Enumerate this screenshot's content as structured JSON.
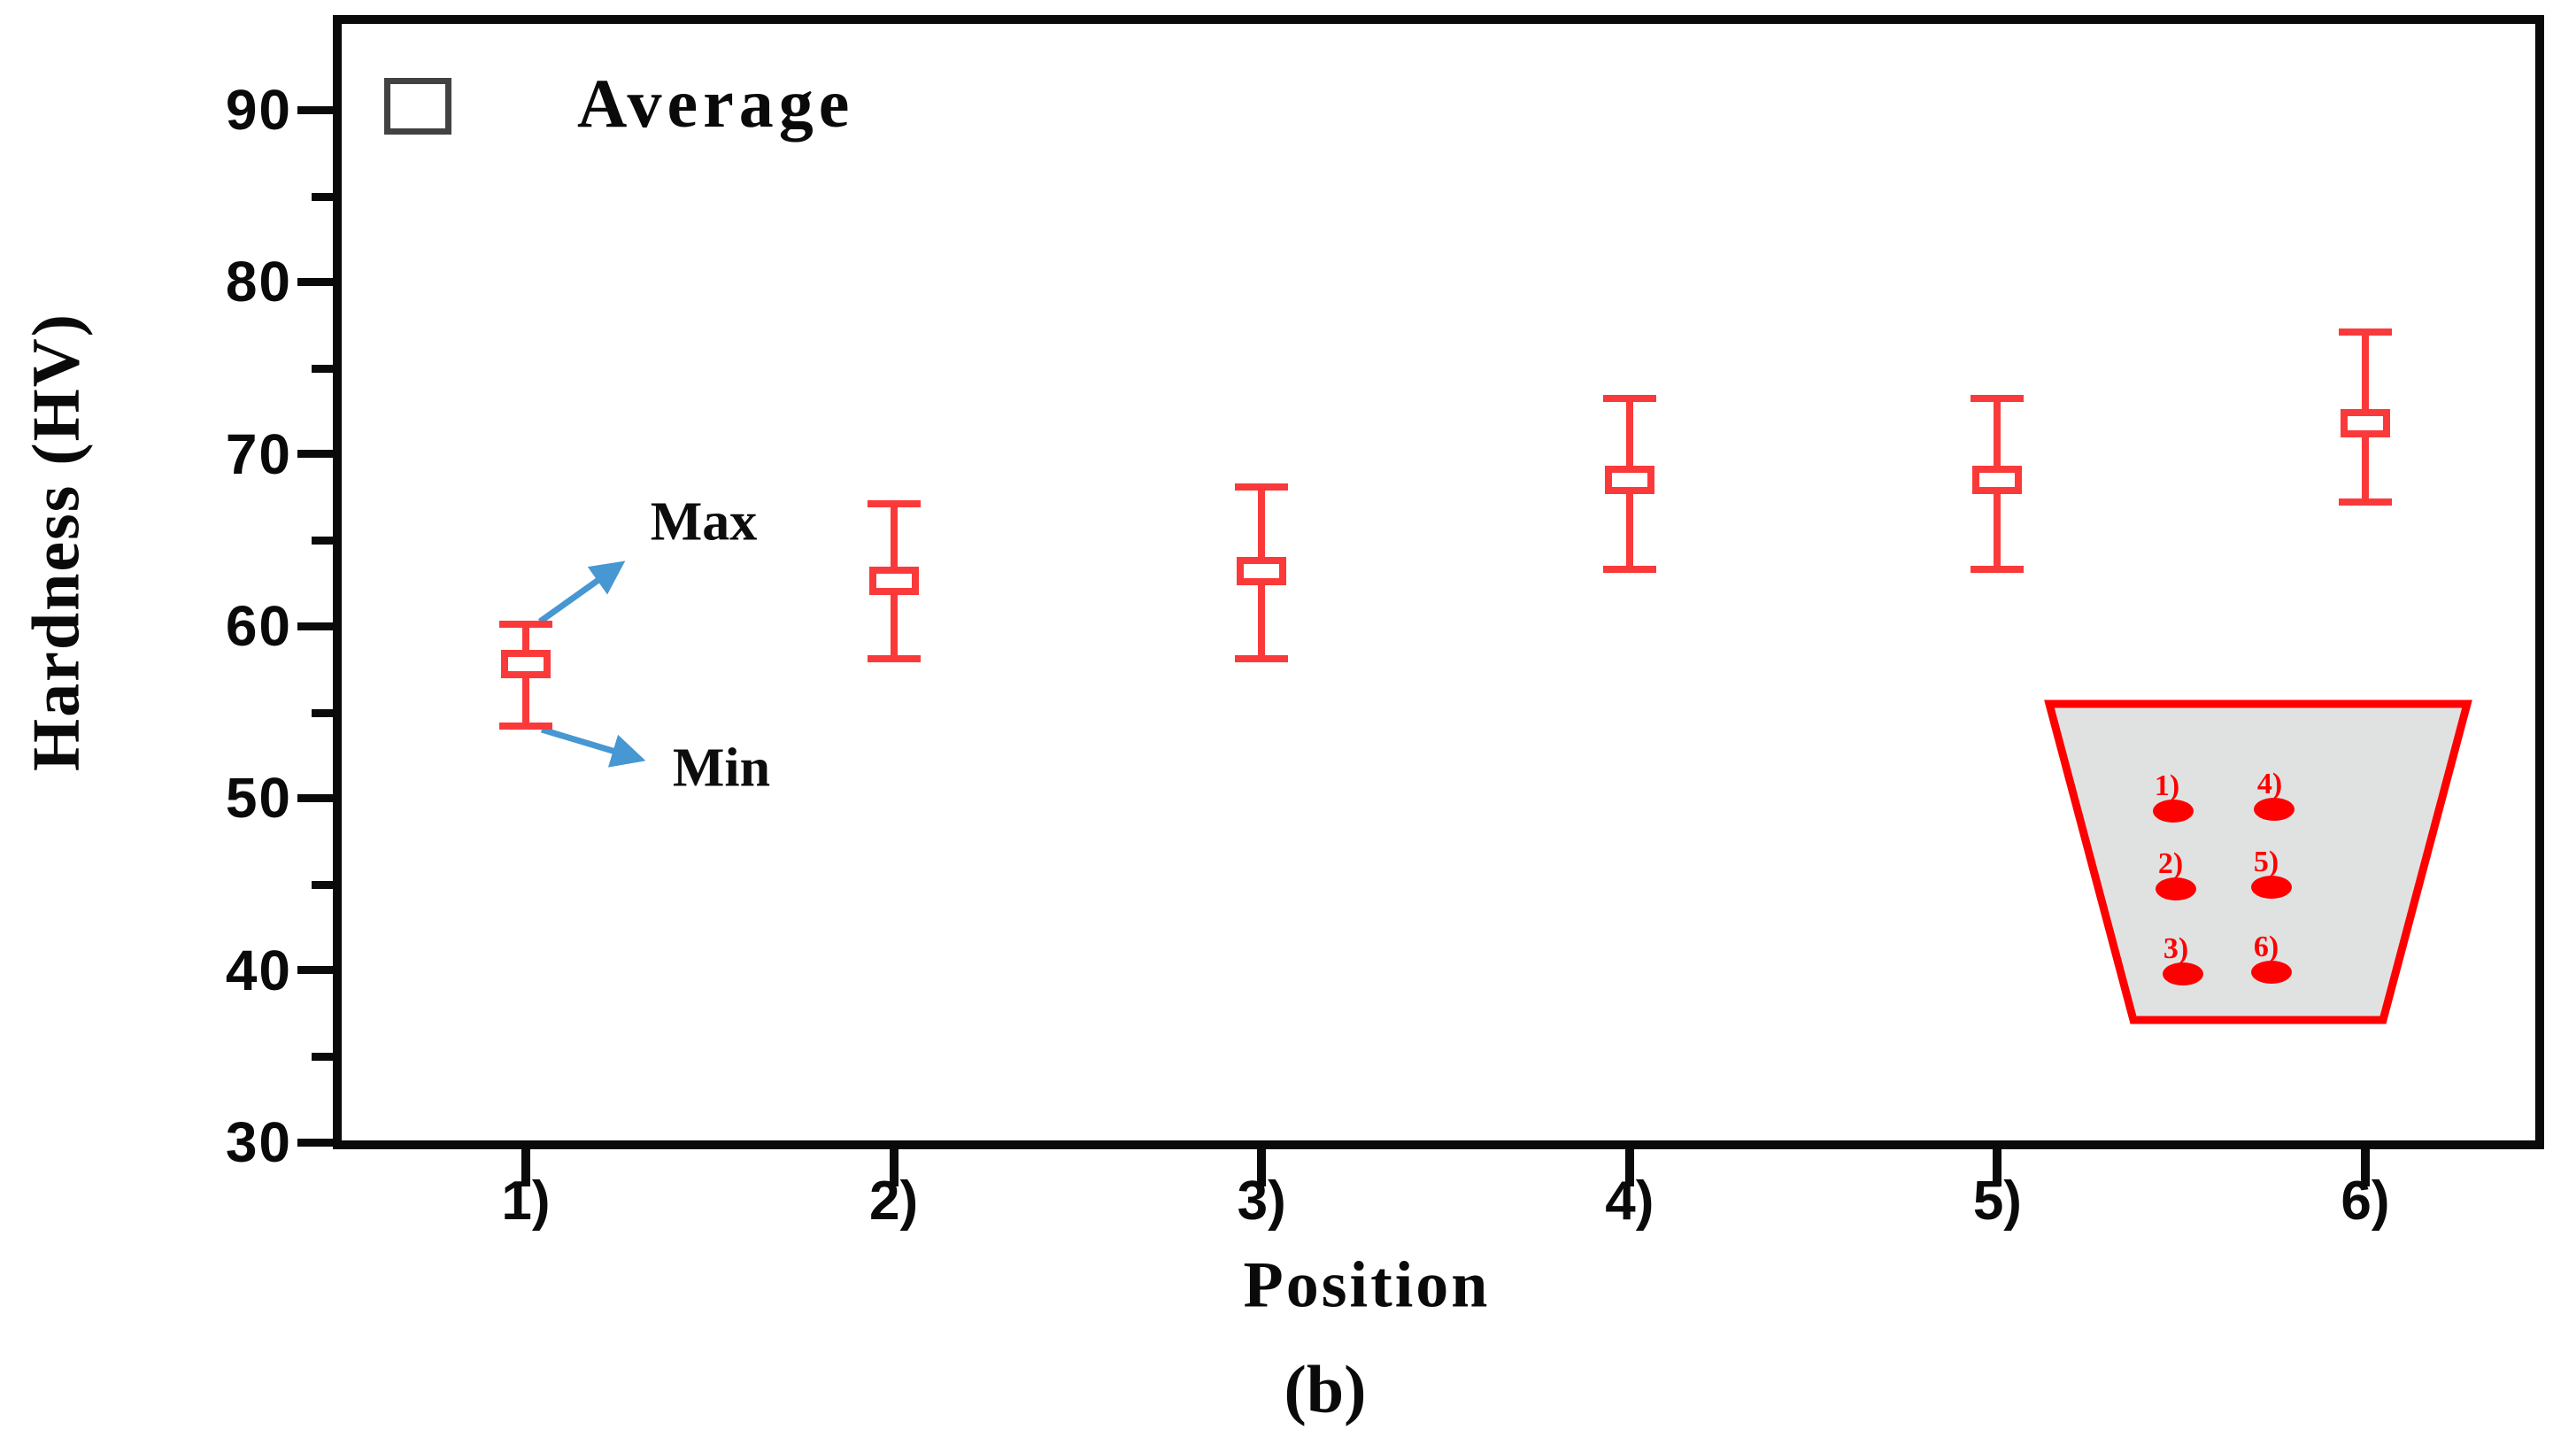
{
  "figure": {
    "caption": "(b)",
    "legend": {
      "label": "Average",
      "marker": "open-square"
    },
    "annotations": {
      "max_label": "Max",
      "min_label": "Min"
    },
    "axes": {
      "x": {
        "title": "Position",
        "tick_labels": [
          "1)",
          "2)",
          "3)",
          "4)",
          "5)",
          "6)"
        ],
        "tick_values": [
          1,
          2,
          3,
          4,
          5,
          6
        ],
        "range": [
          0.5,
          6.5
        ]
      },
      "y": {
        "title": "Hardness (HV)",
        "major_ticks": [
          30,
          40,
          50,
          60,
          70,
          80,
          90
        ],
        "minor_ticks": [
          35,
          45,
          55,
          65,
          75,
          85
        ],
        "range": [
          30,
          95
        ]
      }
    },
    "chart_data": {
      "type": "scatter",
      "subtype": "mean-with-min-max-error-bars",
      "title": "",
      "xlabel": "Position",
      "ylabel": "Hardness (HV)",
      "xlim": [
        0.5,
        6.5
      ],
      "ylim": [
        30,
        95
      ],
      "grid": false,
      "legend_position": "top-left",
      "categories": [
        "1)",
        "2)",
        "3)",
        "4)",
        "5)",
        "6)"
      ],
      "x": [
        1,
        2,
        3,
        4,
        5,
        6
      ],
      "series": [
        {
          "name": "Average",
          "values": [
            57.8,
            62.6,
            63.2,
            68.5,
            68.5,
            71.8
          ],
          "min": [
            54.2,
            58.1,
            58.1,
            63.3,
            63.3,
            67.2
          ],
          "max": [
            60.1,
            67.1,
            68.1,
            73.2,
            73.2,
            77.1
          ]
        }
      ]
    },
    "inset": {
      "description": "weld-cross-section-indent-map",
      "items": [
        {
          "label": "1)"
        },
        {
          "label": "2)"
        },
        {
          "label": "3)"
        },
        {
          "label": "4)"
        },
        {
          "label": "5)"
        },
        {
          "label": "6)"
        }
      ]
    },
    "colors": {
      "series": "#fa3a3a",
      "arrow": "#4697d2",
      "inset_border": "#ff0000",
      "inset_fill": "#e0e2e2",
      "inset_marks": "#ff0000",
      "frame": "#0a0a0a"
    }
  }
}
